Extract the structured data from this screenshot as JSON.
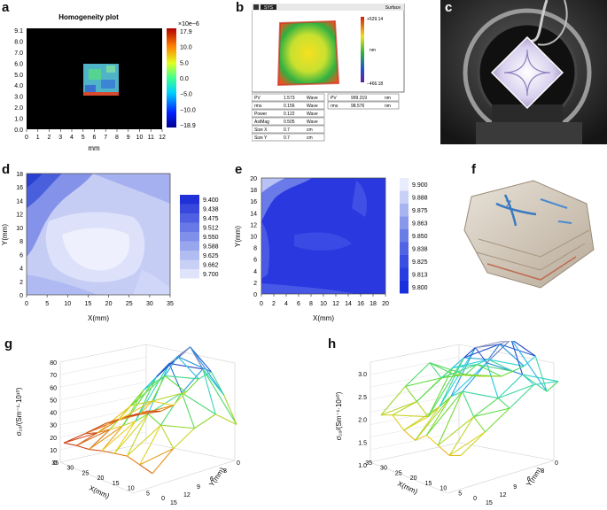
{
  "panels": {
    "a": {
      "letter": "a",
      "title": "Homogeneity plot",
      "xlabel": "mm",
      "x_ticks": [
        "0",
        "1",
        "2",
        "3",
        "4",
        "5",
        "6",
        "7",
        "8",
        "9",
        "10",
        "11",
        "12"
      ],
      "y_ticks": [
        "9.1",
        "8.0",
        "7.0",
        "6.0",
        "5.0",
        "4.0",
        "3.0",
        "2.0",
        "1.0",
        "0.0"
      ],
      "cbar_unit": "×10e−6",
      "cbar_ticks": [
        "17.9",
        "10.0",
        "5.0",
        "0.0",
        "−5.0",
        "−10.0",
        "−18.9"
      ]
    },
    "b": {
      "letter": "b",
      "toolbar_left": "SYS",
      "toolbar_right": "Surface",
      "cbar_top": "+529.14",
      "cbar_unit": "nm",
      "cbar_bottom": "−466.18",
      "table_left": [
        [
          "PV",
          "1.573",
          "Wave"
        ],
        [
          "rms",
          "0.156",
          "Wave"
        ],
        [
          "Power",
          "0.122",
          "Wave"
        ],
        [
          "AstMag",
          "0.505",
          "Wave"
        ],
        [
          "Size X",
          "0.7",
          "cm"
        ],
        [
          "Size Y",
          "0.7",
          "cm"
        ]
      ],
      "table_right": [
        [
          "PV",
          "999.319",
          "nm"
        ],
        [
          "rms",
          "98.576",
          "nm"
        ]
      ]
    },
    "c": {
      "letter": "c"
    },
    "d": {
      "letter": "d",
      "xlabel": "X(mm)",
      "ylabel": "Y(mm)",
      "x_ticks": [
        "0",
        "5",
        "10",
        "15",
        "20",
        "25",
        "30",
        "35"
      ],
      "y_ticks": [
        "0",
        "2",
        "4",
        "6",
        "8",
        "10",
        "12",
        "14",
        "16",
        "18"
      ],
      "legend": [
        "9.400",
        "9.438",
        "9.475",
        "9.512",
        "9.550",
        "9.588",
        "9.625",
        "9.662",
        "9.700"
      ]
    },
    "e": {
      "letter": "e",
      "xlabel": "X(mm)",
      "ylabel": "Y(mm)",
      "x_ticks": [
        "0",
        "2",
        "4",
        "6",
        "8",
        "10",
        "12",
        "14",
        "16",
        "18",
        "20"
      ],
      "y_ticks": [
        "0",
        "2",
        "4",
        "6",
        "8",
        "10",
        "12",
        "14",
        "16",
        "18",
        "20"
      ],
      "legend": [
        "9.900",
        "9.888",
        "9.875",
        "9.863",
        "9.850",
        "9.838",
        "9.825",
        "9.813",
        "9.800"
      ]
    },
    "f": {
      "letter": "f"
    },
    "g": {
      "letter": "g",
      "zlabel": "σ₁₀/(Sm⁻¹·10¹⁰)",
      "z_ticks": [
        "0",
        "10",
        "20",
        "30",
        "40",
        "50",
        "60",
        "70",
        "80"
      ],
      "xlabel": "X(mm)",
      "x_ticks": [
        "35",
        "30",
        "25",
        "20",
        "15",
        "10",
        "5",
        "0"
      ],
      "ylabel": "Y(mm)",
      "y_ticks": [
        "15",
        "12",
        "9",
        "6",
        "3",
        "0"
      ]
    },
    "h": {
      "letter": "h",
      "zlabel": "σ₁₀/(Sm⁻¹·10¹⁰)",
      "z_ticks": [
        "1.0",
        "1.5",
        "2.0",
        "2.5",
        "3.0"
      ],
      "xlabel": "X(mm)",
      "x_ticks": [
        "35",
        "30",
        "25",
        "20",
        "15",
        "10",
        "5",
        "0"
      ],
      "ylabel": "Y(mm)",
      "y_ticks": [
        "15",
        "12",
        "9",
        "6",
        "3",
        "0"
      ]
    }
  }
}
